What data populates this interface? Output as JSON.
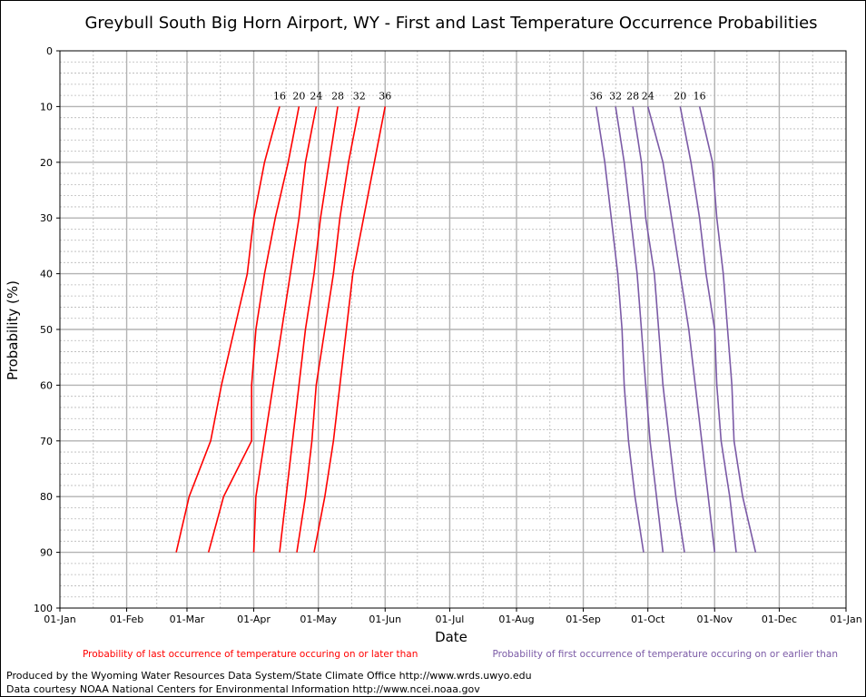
{
  "chart_data": {
    "type": "line",
    "title": "Greybull South Big Horn Airport, WY - First and Last Temperature Occurrence Probabilities",
    "xlabel": "Date",
    "ylabel": "Probability (%)",
    "x_ticks": [
      "01-Jan",
      "01-Feb",
      "01-Mar",
      "01-Apr",
      "01-May",
      "01-Jun",
      "01-Jul",
      "01-Aug",
      "01-Sep",
      "01-Oct",
      "01-Nov",
      "01-Dec",
      "01-Jan"
    ],
    "xlim_day": [
      0,
      365
    ],
    "y_ticks": [
      0,
      10,
      20,
      30,
      40,
      50,
      60,
      70,
      80,
      90,
      100
    ],
    "ylim": [
      0,
      100
    ],
    "y_inverted": true,
    "grid": true,
    "probabilities": [
      10,
      20,
      30,
      40,
      50,
      60,
      70,
      80,
      90
    ],
    "last_occurrence_series": [
      {
        "name": "16",
        "color": "#ff0000",
        "dates": [
          "2024-04-12",
          "2024-04-05",
          "2024-03-31",
          "2024-03-28",
          "2024-03-22",
          "2024-03-16",
          "2024-03-11",
          "2024-03-01",
          "2024-02-24"
        ]
      },
      {
        "name": "20",
        "color": "#ff0000",
        "dates": [
          "2024-04-21",
          "2024-04-16",
          "2024-04-10",
          "2024-04-05",
          "2024-04-01",
          "2024-03-30",
          "2024-03-30",
          "2024-03-17",
          "2024-03-10"
        ]
      },
      {
        "name": "24",
        "color": "#ff0000",
        "dates": [
          "2024-04-29",
          "2024-04-24",
          "2024-04-21",
          "2024-04-17",
          "2024-04-13",
          "2024-04-09",
          "2024-04-05",
          "2024-04-01",
          "2024-03-31"
        ]
      },
      {
        "name": "28",
        "color": "#ff0000",
        "dates": [
          "2024-05-09",
          "2024-05-05",
          "2024-05-01",
          "2024-04-28",
          "2024-04-24",
          "2024-04-21",
          "2024-04-18",
          "2024-04-15",
          "2024-04-12"
        ]
      },
      {
        "name": "32",
        "color": "#ff0000",
        "dates": [
          "2024-05-19",
          "2024-05-14",
          "2024-05-10",
          "2024-05-07",
          "2024-05-03",
          "2024-04-29",
          "2024-04-27",
          "2024-04-24",
          "2024-04-20"
        ]
      },
      {
        "name": "36",
        "color": "#ff0000",
        "dates": [
          "2024-05-31",
          "2024-05-26",
          "2024-05-21",
          "2024-05-16",
          "2024-05-13",
          "2024-05-10",
          "2024-05-07",
          "2024-05-03",
          "2024-04-28"
        ]
      }
    ],
    "first_occurrence_series": [
      {
        "name": "36",
        "color": "#7b5aa6",
        "dates": [
          "2024-09-06",
          "2024-09-10",
          "2024-09-13",
          "2024-09-16",
          "2024-09-18",
          "2024-09-19",
          "2024-09-21",
          "2024-09-24",
          "2024-09-28"
        ]
      },
      {
        "name": "32",
        "color": "#7b5aa6",
        "dates": [
          "2024-09-15",
          "2024-09-19",
          "2024-09-22",
          "2024-09-25",
          "2024-09-27",
          "2024-09-29",
          "2024-10-01",
          "2024-10-04",
          "2024-10-07"
        ]
      },
      {
        "name": "28",
        "color": "#7b5aa6",
        "dates": [
          "2024-09-23",
          "2024-09-27",
          "2024-09-29",
          "2024-10-03",
          "2024-10-05",
          "2024-10-07",
          "2024-10-10",
          "2024-10-13",
          "2024-10-17"
        ]
      },
      {
        "name": "24",
        "color": "#7b5aa6",
        "dates": [
          "2024-09-30",
          "2024-10-07",
          "2024-10-11",
          "2024-10-15",
          "2024-10-19",
          "2024-10-22",
          "2024-10-25",
          "2024-10-28",
          "2024-10-31"
        ]
      },
      {
        "name": "20",
        "color": "#7b5aa6",
        "dates": [
          "2024-10-15",
          "2024-10-20",
          "2024-10-24",
          "2024-10-27",
          "2024-10-31",
          "2024-11-01",
          "2024-11-03",
          "2024-11-07",
          "2024-11-10"
        ]
      },
      {
        "name": "16",
        "color": "#7b5aa6",
        "dates": [
          "2024-10-24",
          "2024-10-30",
          "2024-11-01",
          "2024-11-04",
          "2024-11-06",
          "2024-11-08",
          "2024-11-09",
          "2024-11-13",
          "2024-11-19"
        ]
      }
    ],
    "legend": {
      "last": {
        "text": "Probability of last occurrence of temperature occuring on or later than",
        "color": "#ff0000"
      },
      "first": {
        "text": "Probability of first occurrence of temperature occuring on or earlier than",
        "color": "#7b5aa6"
      }
    }
  },
  "footer": {
    "line1": "Produced by the Wyoming Water Resources Data System/State Climate Office http://www.wrds.uwyo.edu",
    "line2": "Data courtesy NOAA National Centers for Environmental Information http://www.ncei.noaa.gov"
  }
}
